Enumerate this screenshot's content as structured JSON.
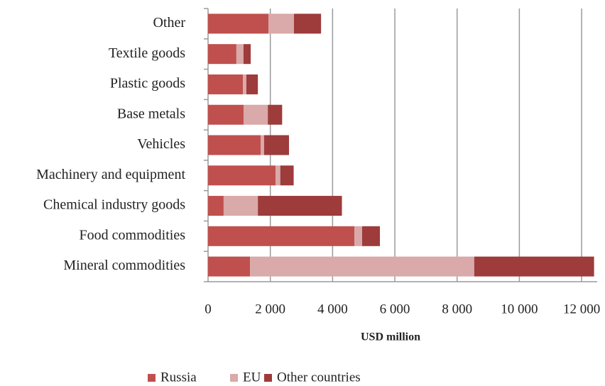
{
  "chart_data": {
    "type": "stacked_barh",
    "categories": [
      "Mineral commodities",
      "Food commodities",
      "Chemical industry goods",
      "Machinery and equipment",
      "Vehicles",
      "Base metals",
      "Plastic goods",
      "Textile goods",
      "Other"
    ],
    "series": [
      {
        "name": "Russia",
        "color": "#c0504d",
        "values": [
          1350,
          4700,
          500,
          2170,
          1690,
          1140,
          1120,
          910,
          1940
        ]
      },
      {
        "name": "EU",
        "color": "#daa9a9",
        "values": [
          7200,
          250,
          1100,
          150,
          110,
          780,
          110,
          230,
          820
        ]
      },
      {
        "name": "Other countries",
        "color": "#9e3b3b",
        "values": [
          3850,
          570,
          2700,
          430,
          800,
          460,
          370,
          230,
          870
        ]
      }
    ],
    "xlabel": "USD million",
    "xlim": [
      0,
      12500
    ],
    "xticks": [
      0,
      {
        "value": 2000,
        "label": "2 000"
      },
      {
        "value": 4000,
        "label": "4 000"
      },
      {
        "value": 6000,
        "label": "6 000"
      },
      {
        "value": 8000,
        "label": "8 000"
      },
      {
        "value": 10000,
        "label": "10 000"
      },
      {
        "value": 12000,
        "label": "12 000"
      }
    ],
    "grid": true,
    "legend": "bottom"
  }
}
